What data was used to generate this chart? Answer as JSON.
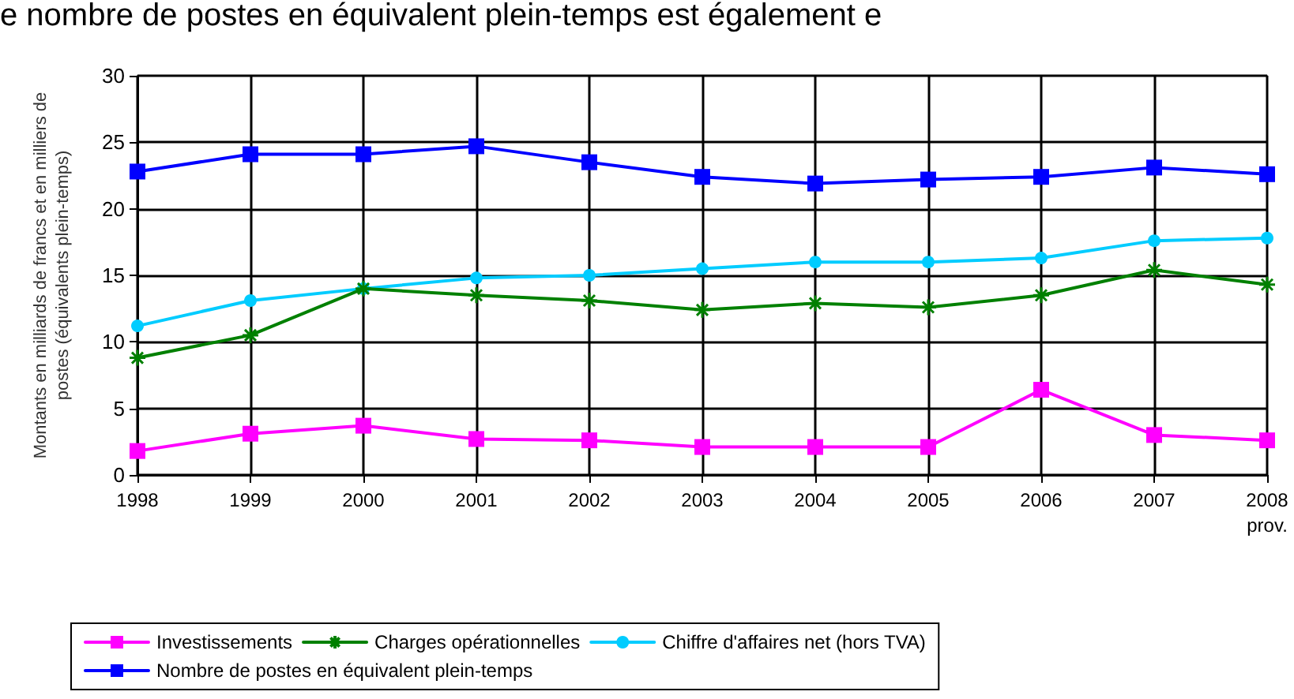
{
  "chart_data": {
    "type": "line",
    "annotations": [
      "e nombre de postes en équivalent plein-temps est également e"
    ],
    "ylabel": "Montants en milliards de francs et en milliers de\npostes (équivalents plein-temps)",
    "categories": [
      "1998",
      "1999",
      "2000",
      "2001",
      "2002",
      "2003",
      "2004",
      "2005",
      "2006",
      "2007",
      "2008\nprov."
    ],
    "ylim": [
      0,
      30
    ],
    "yticks": [
      0,
      5,
      10,
      15,
      20,
      25,
      30
    ],
    "grid": true,
    "legend": "bottom",
    "line_style": "solid",
    "series": [
      {
        "name": "Investissements",
        "color": "#ff00ff",
        "marker": "square",
        "values": [
          1.8,
          3.1,
          3.7,
          2.7,
          2.6,
          2.1,
          2.1,
          2.1,
          6.4,
          3.0,
          2.6
        ]
      },
      {
        "name": "Charges opérationnelles",
        "color": "#008000",
        "marker": "cross",
        "values": [
          8.8,
          10.5,
          14.0,
          13.5,
          13.1,
          12.4,
          12.9,
          12.6,
          13.5,
          15.4,
          14.3
        ]
      },
      {
        "name": "Chiffre d'affaires net (hors TVA)",
        "color": "#00ccff",
        "marker": "circle",
        "values": [
          11.2,
          13.1,
          14.0,
          14.8,
          15.0,
          15.5,
          16.0,
          16.0,
          16.3,
          17.6,
          17.8
        ]
      },
      {
        "name": "Nombre de postes en équivalent plein-temps",
        "color": "#0000ff",
        "marker": "square",
        "values": [
          22.8,
          24.1,
          24.1,
          24.7,
          23.5,
          22.4,
          21.9,
          22.2,
          22.4,
          23.1,
          22.6
        ]
      }
    ]
  }
}
